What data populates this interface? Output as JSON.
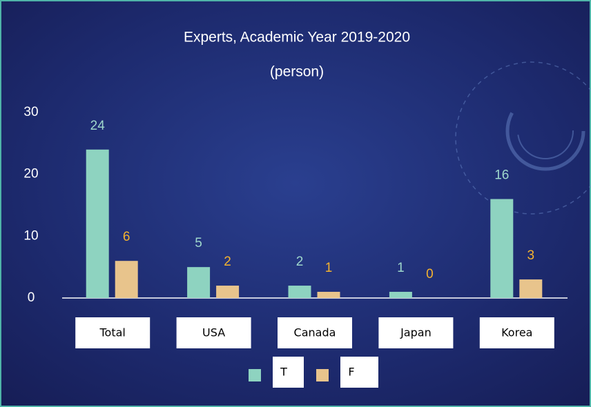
{
  "chart_data": {
    "type": "bar",
    "title": "Experts, Academic Year 2019-2020",
    "subtitle": "(person)",
    "categories": [
      "Total",
      "USA",
      "Canada",
      "Japan",
      "Korea"
    ],
    "series": [
      {
        "name": "T",
        "color": "#8ed3c0",
        "label_color": "#9fd8cc",
        "values": [
          24,
          5,
          2,
          1,
          16
        ]
      },
      {
        "name": "F",
        "color": "#e8c48c",
        "label_color": "#f5b32e",
        "values": [
          6,
          2,
          1,
          0,
          3
        ]
      }
    ],
    "ylim": [
      0,
      30
    ],
    "yticks": [
      0,
      10,
      20,
      30
    ],
    "grid": false,
    "legend": "bottom"
  }
}
